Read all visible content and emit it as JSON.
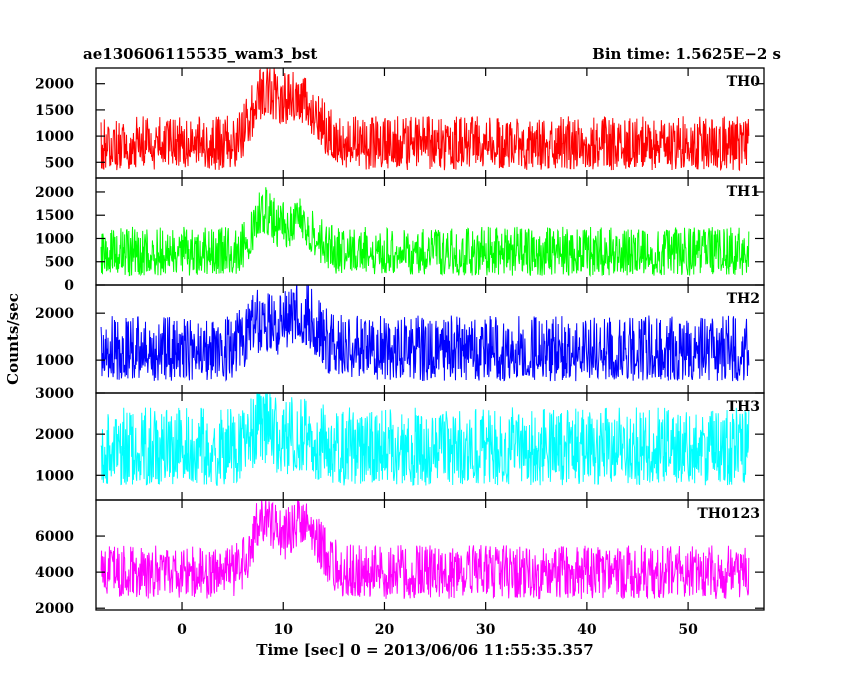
{
  "header": {
    "title": "ae130606115535_wam3_bst",
    "bin_time": "Bin time: 1.5625E−2 s"
  },
  "chart_data": {
    "type": "line",
    "title": "ae130606115535_wam3_bst",
    "bin_time": "Bin time: 1.5625E−2 s",
    "xlabel": "Time [sec] 0 = 2013/06/06 11:55:35.357",
    "ylabel": "Counts/sec",
    "xlim": [
      -8.5,
      57.5
    ],
    "data_xrange": [
      -8,
      56
    ],
    "xticks": [
      0,
      10,
      20,
      30,
      40,
      50
    ],
    "xtick_labels": [
      "0",
      "10",
      "20",
      "30",
      "40",
      "50"
    ],
    "grid": false,
    "legend": "none",
    "panels": [
      {
        "name": "TH0",
        "color": "#ff0000",
        "ylim": [
          200,
          2300
        ],
        "yticks": [
          500,
          1000,
          1500,
          2000
        ],
        "ytick_labels": [
          "500",
          "1000",
          "1500",
          "2000"
        ],
        "baseline": 780,
        "noise_low": 430,
        "noise_high": 600,
        "bursts": [
          {
            "t": 8.0,
            "amp": 850,
            "width": 1.2
          },
          {
            "t": 11.5,
            "amp": 900,
            "width": 1.8
          }
        ]
      },
      {
        "name": "TH1",
        "color": "#00ff00",
        "ylim": [
          0,
          2300
        ],
        "yticks": [
          0,
          500,
          1000,
          1500,
          2000
        ],
        "ytick_labels": [
          "0",
          "500",
          "1000",
          "1500",
          "2000"
        ],
        "baseline": 650,
        "noise_low": 450,
        "noise_high": 600,
        "bursts": [
          {
            "t": 8.0,
            "amp": 800,
            "width": 1.0
          },
          {
            "t": 11.5,
            "amp": 700,
            "width": 1.6
          }
        ]
      },
      {
        "name": "TH2",
        "color": "#0000ff",
        "ylim": [
          300,
          2600
        ],
        "yticks": [
          1000,
          2000
        ],
        "ytick_labels": [
          "1000",
          "2000"
        ],
        "baseline": 1150,
        "noise_low": 600,
        "noise_high": 800,
        "bursts": [
          {
            "t": 8.0,
            "amp": 600,
            "width": 1.3
          },
          {
            "t": 11.8,
            "amp": 800,
            "width": 1.5
          }
        ]
      },
      {
        "name": "TH3",
        "color": "#00ffff",
        "ylim": [
          400,
          3000
        ],
        "yticks": [
          1000,
          2000,
          3000
        ],
        "ytick_labels": [
          "1000",
          "2000",
          "3000"
        ],
        "baseline": 1550,
        "noise_low": 800,
        "noise_high": 1100,
        "bursts": [
          {
            "t": 8.0,
            "amp": 500,
            "width": 1.0
          },
          {
            "t": 11.5,
            "amp": 300,
            "width": 1.5
          }
        ]
      },
      {
        "name": "TH0123",
        "color": "#ff00ff",
        "ylim": [
          1900,
          8000
        ],
        "yticks": [
          2000,
          4000,
          6000
        ],
        "ytick_labels": [
          "2000",
          "4000",
          "6000"
        ],
        "baseline": 3900,
        "noise_low": 1400,
        "noise_high": 1600,
        "bursts": [
          {
            "t": 8.0,
            "amp": 2800,
            "width": 1.1
          },
          {
            "t": 11.8,
            "amp": 3000,
            "width": 1.6
          }
        ]
      }
    ]
  }
}
